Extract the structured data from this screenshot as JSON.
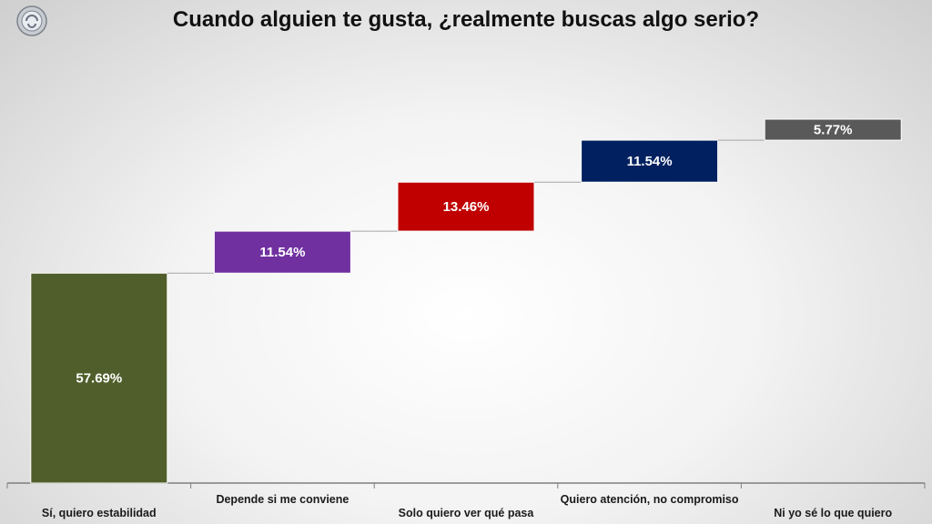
{
  "logo": {
    "icon": "logo-icon"
  },
  "chart_data": {
    "type": "bar",
    "subtype": "waterfall",
    "title": "Cuando alguien te gusta, ¿realmente buscas algo serio?",
    "categories": [
      "Sí, quiero estabilidad",
      "Depende si me conviene",
      "Solo quiero ver qué pasa",
      "Quiero atención, no compromiso",
      "Ni yo sé lo que quiero"
    ],
    "values": [
      57.69,
      11.54,
      13.46,
      11.54,
      5.77
    ],
    "labels": [
      "57.69%",
      "11.54%",
      "13.46%",
      "11.54%",
      "5.77%"
    ],
    "colors": [
      "#4f5e2a",
      "#7030a0",
      "#c00000",
      "#002060",
      "#595959"
    ],
    "ylim": [
      0,
      100
    ],
    "grid": false,
    "legend": false,
    "connectors": true
  }
}
